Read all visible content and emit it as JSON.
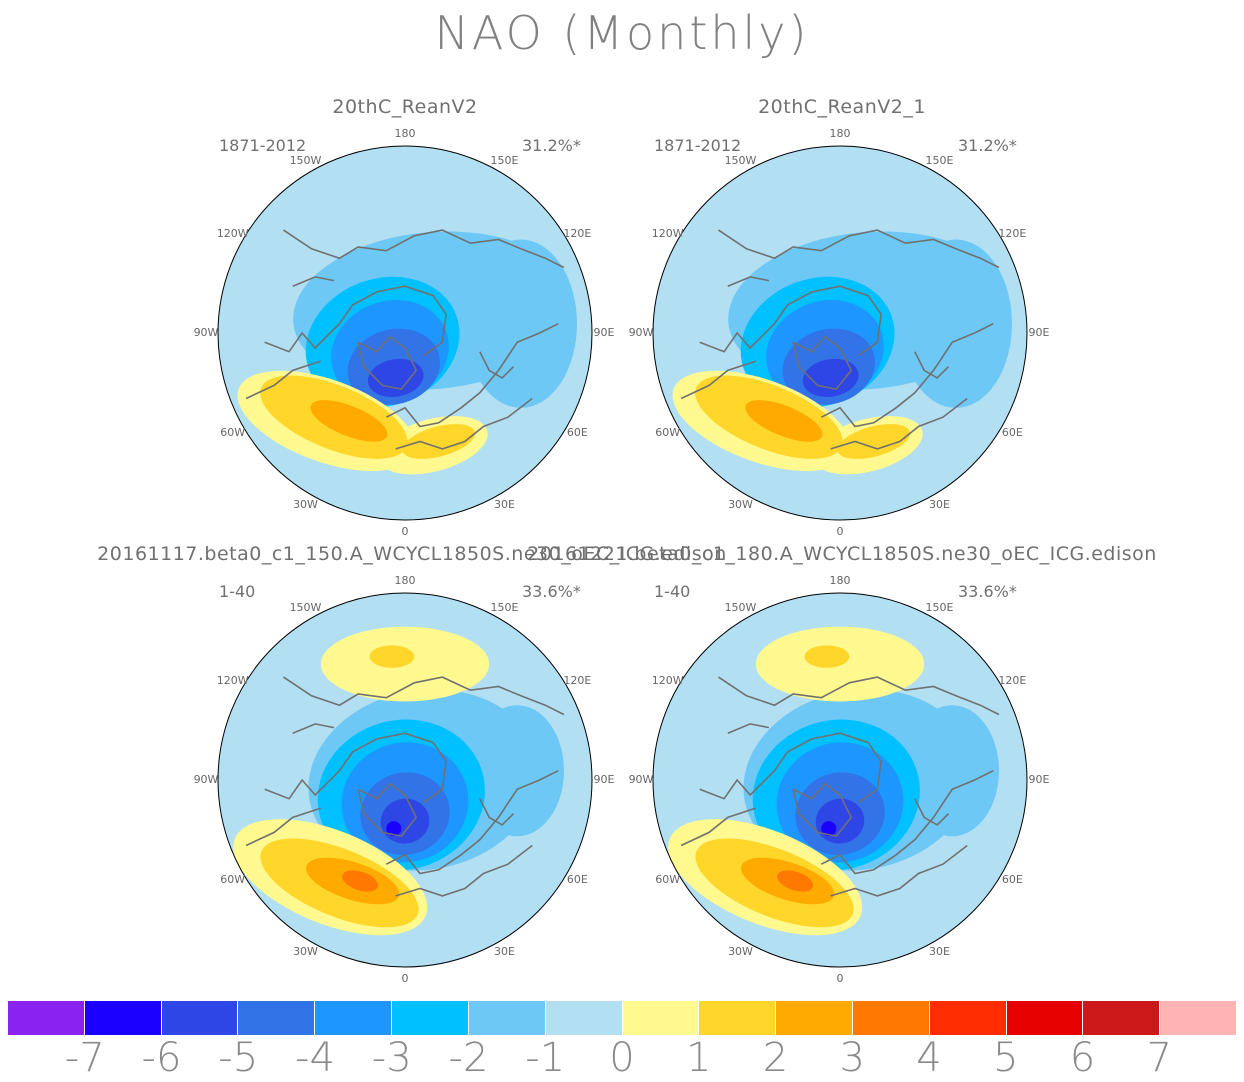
{
  "title": "NAO (Monthly)",
  "panels": [
    {
      "title": "20thC_ReanV2",
      "period": "1871-2012",
      "variance": "31.2%*"
    },
    {
      "title": "20thC_ReanV2_1",
      "period": "1871-2012",
      "variance": "31.2%*"
    },
    {
      "title": "20161117.beta0_c1_150.A_WCYCL1850S.ne30_oEC_ICG.edison",
      "period": "1-40",
      "variance": "33.6%*"
    },
    {
      "title": "20161221.beta0_c1_180.A_WCYCL1850S.ne30_oEC_ICG.edison",
      "period": "1-40",
      "variance": "33.6%*"
    }
  ],
  "longitude_labels": [
    "180",
    "150E",
    "120E",
    "90E",
    "60E",
    "30E",
    "0",
    "30W",
    "60W",
    "90W",
    "120W",
    "150W"
  ],
  "colorbar": {
    "labels": [
      "-7",
      "-6",
      "-5",
      "-4",
      "-3",
      "-2",
      "-1",
      "0",
      "1",
      "2",
      "3",
      "4",
      "5",
      "6",
      "7"
    ],
    "colors": [
      "#8a23f0",
      "#1b00ff",
      "#2e46e6",
      "#3273e8",
      "#1e96ff",
      "#00c0ff",
      "#6ec8f5",
      "#b2dff2",
      "#fff990",
      "#ffd629",
      "#ffaa00",
      "#ff7800",
      "#ff2d00",
      "#e60000",
      "#cc1818",
      "#ffb4b4"
    ]
  }
}
